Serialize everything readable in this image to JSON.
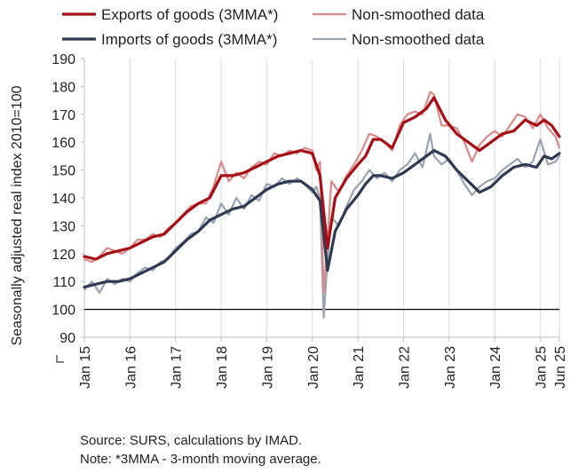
{
  "chart_data": {
    "type": "line",
    "ylabel": "Seasonally adjusted real index 2010=100",
    "xlabel": "",
    "ylim": [
      90,
      190
    ],
    "yticks": [
      90,
      100,
      110,
      120,
      130,
      140,
      150,
      160,
      170,
      180,
      190
    ],
    "x_tick_labels": [
      "Jan 15",
      "Jan 16",
      "Jan 17",
      "Jan 18",
      "Jan 19",
      "Jan 20",
      "Jan 21",
      "Jan 22",
      "Jan 23",
      "Jan 24",
      "Jan 25",
      "Jun 25"
    ],
    "x_start": "2015-01",
    "x_end": "2025-06",
    "grid": "vertical",
    "reference_line": 100,
    "legend_position": "top",
    "legend": [
      {
        "label": "Exports of goods (3MMA*)",
        "color": "#a50f15",
        "width": 3.2
      },
      {
        "label": "Non-smoothed data",
        "color": "#d98a8a",
        "width": 2.2
      },
      {
        "label": "Imports of goods (3MMA*)",
        "color": "#2e3a52",
        "width": 3.2
      },
      {
        "label": "Non-smoothed data",
        "color": "#99a3b2",
        "width": 2.2
      }
    ],
    "series": [
      {
        "name": "Exports of goods (3MMA*)",
        "key": "exp3",
        "color": "#a50f15",
        "width": 3.2,
        "points": [
          [
            "2015-01",
            119
          ],
          [
            "2015-04",
            118
          ],
          [
            "2015-07",
            120
          ],
          [
            "2015-10",
            121
          ],
          [
            "2016-01",
            122
          ],
          [
            "2016-04",
            124
          ],
          [
            "2016-07",
            126
          ],
          [
            "2016-10",
            127
          ],
          [
            "2017-01",
            131
          ],
          [
            "2017-04",
            135
          ],
          [
            "2017-07",
            138
          ],
          [
            "2017-10",
            140
          ],
          [
            "2018-01",
            148
          ],
          [
            "2018-04",
            148
          ],
          [
            "2018-07",
            149
          ],
          [
            "2018-10",
            151
          ],
          [
            "2019-01",
            153
          ],
          [
            "2019-04",
            155
          ],
          [
            "2019-07",
            156
          ],
          [
            "2019-10",
            157
          ],
          [
            "2020-01",
            156
          ],
          [
            "2020-03",
            148
          ],
          [
            "2020-05",
            122
          ],
          [
            "2020-07",
            140
          ],
          [
            "2020-10",
            147
          ],
          [
            "2021-01",
            152
          ],
          [
            "2021-03",
            155
          ],
          [
            "2021-05",
            161
          ],
          [
            "2021-07",
            161
          ],
          [
            "2021-10",
            158
          ],
          [
            "2022-01",
            167
          ],
          [
            "2022-04",
            169
          ],
          [
            "2022-07",
            172
          ],
          [
            "2022-09",
            176
          ],
          [
            "2022-12",
            168
          ],
          [
            "2023-03",
            163
          ],
          [
            "2023-06",
            160
          ],
          [
            "2023-09",
            157
          ],
          [
            "2023-12",
            160
          ],
          [
            "2024-03",
            163
          ],
          [
            "2024-06",
            164
          ],
          [
            "2024-09",
            168
          ],
          [
            "2024-12",
            166
          ],
          [
            "2025-02",
            168
          ],
          [
            "2025-04",
            166
          ],
          [
            "2025-06",
            162
          ]
        ]
      },
      {
        "name": "Non-smoothed data",
        "key": "exp",
        "color": "#d98a8a",
        "width": 2.2,
        "points": [
          [
            "2015-01",
            118
          ],
          [
            "2015-03",
            117
          ],
          [
            "2015-05",
            119
          ],
          [
            "2015-07",
            122
          ],
          [
            "2015-09",
            121
          ],
          [
            "2015-11",
            120
          ],
          [
            "2016-01",
            122
          ],
          [
            "2016-03",
            125
          ],
          [
            "2016-05",
            125
          ],
          [
            "2016-07",
            127
          ],
          [
            "2016-09",
            126
          ],
          [
            "2016-11",
            129
          ],
          [
            "2017-01",
            131
          ],
          [
            "2017-03",
            134
          ],
          [
            "2017-05",
            137
          ],
          [
            "2017-07",
            138
          ],
          [
            "2017-09",
            138
          ],
          [
            "2017-11",
            144
          ],
          [
            "2018-01",
            153
          ],
          [
            "2018-03",
            146
          ],
          [
            "2018-05",
            149
          ],
          [
            "2018-07",
            147
          ],
          [
            "2018-09",
            151
          ],
          [
            "2018-11",
            153
          ],
          [
            "2019-01",
            152
          ],
          [
            "2019-03",
            156
          ],
          [
            "2019-05",
            155
          ],
          [
            "2019-07",
            157
          ],
          [
            "2019-09",
            156
          ],
          [
            "2019-11",
            158
          ],
          [
            "2020-01",
            157
          ],
          [
            "2020-02",
            150
          ],
          [
            "2020-03",
            153
          ],
          [
            "2020-04",
            106
          ],
          [
            "2020-05",
            125
          ],
          [
            "2020-06",
            146
          ],
          [
            "2020-08",
            142
          ],
          [
            "2020-10",
            148
          ],
          [
            "2020-12",
            152
          ],
          [
            "2021-02",
            157
          ],
          [
            "2021-04",
            163
          ],
          [
            "2021-06",
            162
          ],
          [
            "2021-08",
            160
          ],
          [
            "2021-10",
            157
          ],
          [
            "2021-12",
            166
          ],
          [
            "2022-02",
            170
          ],
          [
            "2022-04",
            171
          ],
          [
            "2022-06",
            170
          ],
          [
            "2022-08",
            178
          ],
          [
            "2022-09",
            177
          ],
          [
            "2022-11",
            166
          ],
          [
            "2023-01",
            166
          ],
          [
            "2023-03",
            165
          ],
          [
            "2023-05",
            160
          ],
          [
            "2023-07",
            153
          ],
          [
            "2023-09",
            159
          ],
          [
            "2023-11",
            162
          ],
          [
            "2024-01",
            164
          ],
          [
            "2024-03",
            162
          ],
          [
            "2024-05",
            166
          ],
          [
            "2024-07",
            170
          ],
          [
            "2024-09",
            169
          ],
          [
            "2024-11",
            165
          ],
          [
            "2025-01",
            170
          ],
          [
            "2025-03",
            165
          ],
          [
            "2025-05",
            162
          ],
          [
            "2025-06",
            158
          ]
        ]
      },
      {
        "name": "Imports of goods (3MMA*)",
        "key": "imp3",
        "color": "#2e3a52",
        "width": 3.2,
        "points": [
          [
            "2015-01",
            108
          ],
          [
            "2015-04",
            109
          ],
          [
            "2015-07",
            110
          ],
          [
            "2015-10",
            110
          ],
          [
            "2016-01",
            111
          ],
          [
            "2016-04",
            113
          ],
          [
            "2016-07",
            115
          ],
          [
            "2016-10",
            117
          ],
          [
            "2017-01",
            121
          ],
          [
            "2017-04",
            125
          ],
          [
            "2017-07",
            128
          ],
          [
            "2017-10",
            132
          ],
          [
            "2018-01",
            134
          ],
          [
            "2018-04",
            136
          ],
          [
            "2018-07",
            137
          ],
          [
            "2018-10",
            140
          ],
          [
            "2019-01",
            143
          ],
          [
            "2019-04",
            145
          ],
          [
            "2019-07",
            146
          ],
          [
            "2019-10",
            146
          ],
          [
            "2020-01",
            143
          ],
          [
            "2020-03",
            139
          ],
          [
            "2020-05",
            114
          ],
          [
            "2020-07",
            128
          ],
          [
            "2020-10",
            136
          ],
          [
            "2021-01",
            141
          ],
          [
            "2021-03",
            145
          ],
          [
            "2021-05",
            148
          ],
          [
            "2021-07",
            148
          ],
          [
            "2021-10",
            147
          ],
          [
            "2022-01",
            149
          ],
          [
            "2022-04",
            152
          ],
          [
            "2022-07",
            155
          ],
          [
            "2022-09",
            157
          ],
          [
            "2022-12",
            155
          ],
          [
            "2023-03",
            150
          ],
          [
            "2023-06",
            146
          ],
          [
            "2023-09",
            142
          ],
          [
            "2023-12",
            144
          ],
          [
            "2024-03",
            148
          ],
          [
            "2024-06",
            151
          ],
          [
            "2024-09",
            152
          ],
          [
            "2024-12",
            151
          ],
          [
            "2025-02",
            155
          ],
          [
            "2025-04",
            154
          ],
          [
            "2025-06",
            156
          ]
        ]
      },
      {
        "name": "Non-smoothed data",
        "key": "imp",
        "color": "#99a3b2",
        "width": 2.2,
        "points": [
          [
            "2015-01",
            107
          ],
          [
            "2015-03",
            110
          ],
          [
            "2015-05",
            106
          ],
          [
            "2015-07",
            111
          ],
          [
            "2015-09",
            109
          ],
          [
            "2015-11",
            111
          ],
          [
            "2016-01",
            110
          ],
          [
            "2016-03",
            113
          ],
          [
            "2016-05",
            115
          ],
          [
            "2016-07",
            114
          ],
          [
            "2016-09",
            117
          ],
          [
            "2016-11",
            118
          ],
          [
            "2017-01",
            122
          ],
          [
            "2017-03",
            124
          ],
          [
            "2017-05",
            127
          ],
          [
            "2017-07",
            128
          ],
          [
            "2017-09",
            133
          ],
          [
            "2017-11",
            131
          ],
          [
            "2018-01",
            138
          ],
          [
            "2018-03",
            134
          ],
          [
            "2018-05",
            140
          ],
          [
            "2018-07",
            136
          ],
          [
            "2018-09",
            141
          ],
          [
            "2018-11",
            139
          ],
          [
            "2019-01",
            145
          ],
          [
            "2019-03",
            144
          ],
          [
            "2019-05",
            147
          ],
          [
            "2019-07",
            145
          ],
          [
            "2019-09",
            147
          ],
          [
            "2019-11",
            145
          ],
          [
            "2020-01",
            142
          ],
          [
            "2020-02",
            144
          ],
          [
            "2020-03",
            140
          ],
          [
            "2020-04",
            97
          ],
          [
            "2020-05",
            118
          ],
          [
            "2020-06",
            133
          ],
          [
            "2020-08",
            130
          ],
          [
            "2020-10",
            137
          ],
          [
            "2020-12",
            143
          ],
          [
            "2021-02",
            146
          ],
          [
            "2021-04",
            150
          ],
          [
            "2021-06",
            147
          ],
          [
            "2021-08",
            149
          ],
          [
            "2021-10",
            146
          ],
          [
            "2021-12",
            150
          ],
          [
            "2022-02",
            152
          ],
          [
            "2022-04",
            156
          ],
          [
            "2022-06",
            151
          ],
          [
            "2022-08",
            163
          ],
          [
            "2022-09",
            155
          ],
          [
            "2022-11",
            152
          ],
          [
            "2023-01",
            154
          ],
          [
            "2023-03",
            150
          ],
          [
            "2023-05",
            145
          ],
          [
            "2023-07",
            141
          ],
          [
            "2023-09",
            144
          ],
          [
            "2023-11",
            146
          ],
          [
            "2024-01",
            147
          ],
          [
            "2024-03",
            150
          ],
          [
            "2024-05",
            152
          ],
          [
            "2024-07",
            154
          ],
          [
            "2024-09",
            151
          ],
          [
            "2024-11",
            153
          ],
          [
            "2025-01",
            161
          ],
          [
            "2025-03",
            152
          ],
          [
            "2025-05",
            153
          ],
          [
            "2025-06",
            155
          ]
        ]
      }
    ]
  },
  "notes": {
    "source": "Source: SURS, calculations by IMAD.",
    "note": "Note: *3MMA - 3-month moving average."
  }
}
